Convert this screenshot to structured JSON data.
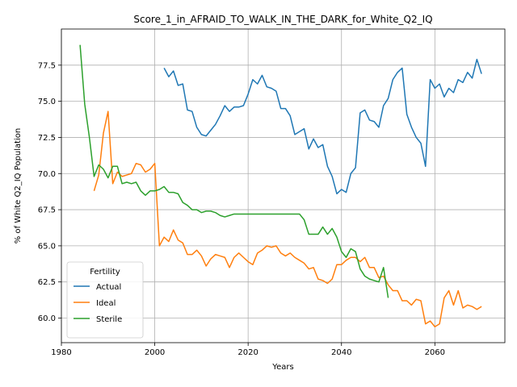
{
  "chart_data": {
    "type": "line",
    "title": "Score_1_in_AFRAID_TO_WALK_IN_THE_DARK_for_White_Q2_IQ",
    "xlabel": "Years",
    "ylabel": "% of White Q2_IQ Population",
    "xlim": [
      1980,
      2075
    ],
    "ylim": [
      58.3,
      80.0
    ],
    "xticks": [
      1980,
      2000,
      2020,
      2040,
      2060
    ],
    "yticks": [
      60.0,
      62.5,
      65.0,
      67.5,
      70.0,
      72.5,
      75.0,
      77.5
    ],
    "xtick_labels": [
      "1980",
      "2000",
      "2020",
      "2040",
      "2060"
    ],
    "ytick_labels": [
      "60.0",
      "62.5",
      "65.0",
      "67.5",
      "70.0",
      "72.5",
      "75.0",
      "77.5"
    ],
    "grid": true,
    "legend": {
      "title": "Fertility",
      "position": "bottom-left"
    },
    "series": [
      {
        "name": "Actual",
        "color": "#1f77b4",
        "x": [
          2002,
          2003,
          2004,
          2005,
          2006,
          2007,
          2008,
          2009,
          2010,
          2011,
          2012,
          2013,
          2014,
          2015,
          2016,
          2017,
          2018,
          2019,
          2020,
          2021,
          2022,
          2023,
          2024,
          2025,
          2026,
          2027,
          2028,
          2029,
          2030,
          2031,
          2032,
          2033,
          2034,
          2035,
          2036,
          2037,
          2038,
          2039,
          2040,
          2041,
          2042,
          2043,
          2044,
          2045,
          2046,
          2047,
          2048,
          2049,
          2050,
          2051,
          2052,
          2053,
          2054,
          2055,
          2056,
          2057,
          2058,
          2059,
          2060,
          2061,
          2062,
          2063,
          2064,
          2065,
          2066,
          2067,
          2068,
          2069,
          2070
        ],
        "y": [
          77.3,
          76.7,
          77.1,
          76.1,
          76.2,
          74.4,
          74.3,
          73.2,
          72.7,
          72.6,
          73.0,
          73.4,
          74.0,
          74.7,
          74.3,
          74.6,
          74.6,
          74.7,
          75.5,
          76.5,
          76.2,
          76.8,
          76.0,
          75.9,
          75.7,
          74.5,
          74.5,
          74.0,
          72.7,
          72.9,
          73.1,
          71.7,
          72.4,
          71.8,
          72.0,
          70.5,
          69.8,
          68.6,
          68.9,
          68.7,
          70.0,
          70.4,
          74.2,
          74.4,
          73.7,
          73.6,
          73.2,
          74.7,
          75.2,
          76.5,
          77.0,
          77.3,
          74.1,
          73.2,
          72.5,
          72.1,
          70.5,
          76.5,
          75.9,
          76.2,
          75.3,
          75.9,
          75.6,
          76.5,
          76.3,
          77.0,
          76.6,
          77.9,
          76.9
        ]
      },
      {
        "name": "Ideal",
        "color": "#ff7f0e",
        "x": [
          1987,
          1988,
          1989,
          1990,
          1991,
          1992,
          1993,
          1994,
          1995,
          1996,
          1997,
          1998,
          1999,
          2000,
          2001,
          2002,
          2003,
          2004,
          2005,
          2006,
          2007,
          2008,
          2009,
          2010,
          2011,
          2012,
          2013,
          2014,
          2015,
          2016,
          2017,
          2018,
          2019,
          2020,
          2021,
          2022,
          2023,
          2024,
          2025,
          2026,
          2027,
          2028,
          2029,
          2030,
          2031,
          2032,
          2033,
          2034,
          2035,
          2036,
          2037,
          2038,
          2039,
          2040,
          2041,
          2042,
          2043,
          2044,
          2045,
          2046,
          2047,
          2048,
          2049,
          2050,
          2051,
          2052,
          2053,
          2054,
          2055,
          2056,
          2057,
          2058,
          2059,
          2060,
          2061,
          2062,
          2063,
          2064,
          2065,
          2066,
          2067,
          2068,
          2069,
          2070
        ],
        "y": [
          68.8,
          69.9,
          72.8,
          74.3,
          69.3,
          70.1,
          69.8,
          69.9,
          70.0,
          70.7,
          70.6,
          70.1,
          70.3,
          70.7,
          65.0,
          65.6,
          65.3,
          66.1,
          65.4,
          65.2,
          64.4,
          64.4,
          64.7,
          64.3,
          63.6,
          64.1,
          64.4,
          64.3,
          64.2,
          63.5,
          64.2,
          64.5,
          64.2,
          63.9,
          63.7,
          64.5,
          64.7,
          65.0,
          64.9,
          65.0,
          64.5,
          64.3,
          64.5,
          64.2,
          64.0,
          63.8,
          63.4,
          63.5,
          62.7,
          62.6,
          62.4,
          62.7,
          63.7,
          63.7,
          64.0,
          64.2,
          64.2,
          63.9,
          64.2,
          63.5,
          63.5,
          62.8,
          62.9,
          62.3,
          61.9,
          61.9,
          61.2,
          61.2,
          60.9,
          61.3,
          61.2,
          59.6,
          59.8,
          59.4,
          59.6,
          61.4,
          61.9,
          60.9,
          61.9,
          60.7,
          60.9,
          60.8,
          60.6,
          60.8
        ]
      },
      {
        "name": "Sterile",
        "color": "#2ca02c",
        "x": [
          1984,
          1985,
          1986,
          1987,
          1988,
          1989,
          1990,
          1991,
          1992,
          1993,
          1994,
          1995,
          1996,
          1997,
          1998,
          1999,
          2000,
          2001,
          2002,
          2003,
          2004,
          2005,
          2006,
          2007,
          2008,
          2009,
          2010,
          2011,
          2012,
          2013,
          2014,
          2015,
          2016,
          2017,
          2018,
          2019,
          2020,
          2021,
          2022,
          2023,
          2024,
          2025,
          2026,
          2027,
          2028,
          2029,
          2030,
          2031,
          2032,
          2033,
          2034,
          2035,
          2036,
          2037,
          2038,
          2039,
          2040,
          2041,
          2042,
          2043,
          2044,
          2045,
          2046,
          2047,
          2048,
          2049,
          2050
        ],
        "y": [
          78.9,
          74.8,
          72.5,
          69.8,
          70.6,
          70.3,
          69.7,
          70.5,
          70.5,
          69.3,
          69.4,
          69.3,
          69.4,
          68.8,
          68.5,
          68.8,
          68.8,
          68.9,
          69.1,
          68.7,
          68.7,
          68.6,
          68.0,
          67.8,
          67.5,
          67.5,
          67.3,
          67.4,
          67.4,
          67.3,
          67.1,
          67.0,
          67.1,
          67.2,
          67.2,
          67.2,
          67.2,
          67.2,
          67.2,
          67.2,
          67.2,
          67.2,
          67.2,
          67.2,
          67.2,
          67.2,
          67.2,
          67.2,
          66.8,
          65.8,
          65.8,
          65.8,
          66.3,
          65.8,
          66.2,
          65.6,
          64.6,
          64.2,
          64.8,
          64.6,
          63.4,
          62.9,
          62.7,
          62.6,
          62.5,
          63.5,
          61.4
        ]
      }
    ]
  }
}
